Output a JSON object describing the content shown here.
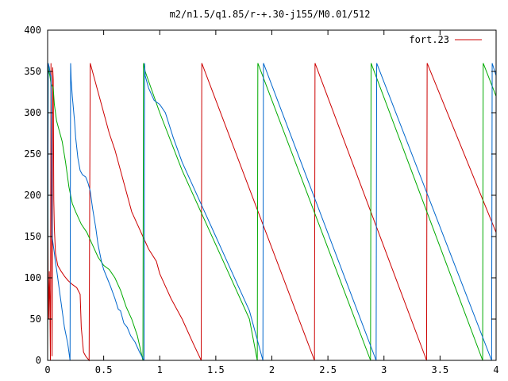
{
  "chart_data": {
    "type": "line",
    "title": "m2/n1.5/q1.85/r-+.30-j155/M0.01/512",
    "xlabel": "",
    "ylabel": "",
    "xlim": [
      0,
      4
    ],
    "ylim": [
      0,
      400
    ],
    "xticks": [
      0,
      0.5,
      1,
      1.5,
      2,
      2.5,
      3,
      3.5,
      4
    ],
    "yticks": [
      0,
      50,
      100,
      150,
      200,
      250,
      300,
      350,
      400
    ],
    "xtick_labels": [
      "0",
      "0.5",
      "1",
      "1.5",
      "2",
      "2.5",
      "3",
      "3.5",
      "4"
    ],
    "ytick_labels": [
      "0",
      "50",
      "100",
      "150",
      "200",
      "250",
      "300",
      "350",
      "400"
    ],
    "grid": false,
    "legend_position": "top-right",
    "legend_entry": "fort.23",
    "series": [
      {
        "name": "fort.23",
        "color": "#cc0000",
        "points": [
          [
            0.0,
            360
          ],
          [
            0.005,
            100
          ],
          [
            0.01,
            50
          ],
          [
            0.015,
            108
          ],
          [
            0.02,
            70
          ],
          [
            0.025,
            0
          ],
          [
            0.03,
            360
          ],
          [
            0.035,
            200
          ],
          [
            0.04,
            5
          ],
          [
            0.045,
            355
          ],
          [
            0.05,
            340
          ],
          [
            0.055,
            195
          ],
          [
            0.06,
            160
          ],
          [
            0.07,
            130
          ],
          [
            0.09,
            115
          ],
          [
            0.12,
            108
          ],
          [
            0.15,
            102
          ],
          [
            0.18,
            97
          ],
          [
            0.22,
            92
          ],
          [
            0.26,
            88
          ],
          [
            0.29,
            80
          ],
          [
            0.3,
            40
          ],
          [
            0.32,
            10
          ],
          [
            0.34,
            5
          ],
          [
            0.37,
            0
          ],
          [
            0.38,
            360
          ],
          [
            0.42,
            340
          ],
          [
            0.46,
            320
          ],
          [
            0.5,
            300
          ],
          [
            0.55,
            275
          ],
          [
            0.6,
            255
          ],
          [
            0.65,
            230
          ],
          [
            0.7,
            205
          ],
          [
            0.75,
            180
          ],
          [
            0.8,
            165
          ],
          [
            0.85,
            150
          ],
          [
            0.9,
            135
          ],
          [
            0.97,
            120
          ],
          [
            1.0,
            105
          ],
          [
            1.05,
            90
          ],
          [
            1.1,
            75
          ],
          [
            1.2,
            50
          ],
          [
            1.3,
            20
          ],
          [
            1.37,
            0
          ],
          [
            1.375,
            360
          ],
          [
            2.38,
            0
          ],
          [
            2.385,
            360
          ],
          [
            3.38,
            0
          ],
          [
            3.385,
            360
          ],
          [
            4.0,
            155
          ]
        ]
      },
      {
        "name": "",
        "color": "#00aa00",
        "points": [
          [
            0.0,
            0
          ],
          [
            0.005,
            360
          ],
          [
            0.01,
            350
          ],
          [
            0.02,
            345
          ],
          [
            0.03,
            335
          ],
          [
            0.05,
            330
          ],
          [
            0.06,
            310
          ],
          [
            0.08,
            290
          ],
          [
            0.1,
            280
          ],
          [
            0.13,
            265
          ],
          [
            0.16,
            240
          ],
          [
            0.19,
            210
          ],
          [
            0.22,
            190
          ],
          [
            0.25,
            180
          ],
          [
            0.3,
            165
          ],
          [
            0.35,
            155
          ],
          [
            0.4,
            140
          ],
          [
            0.45,
            125
          ],
          [
            0.5,
            115
          ],
          [
            0.55,
            110
          ],
          [
            0.6,
            100
          ],
          [
            0.65,
            85
          ],
          [
            0.7,
            65
          ],
          [
            0.75,
            50
          ],
          [
            0.8,
            30
          ],
          [
            0.85,
            0
          ],
          [
            0.855,
            360
          ],
          [
            0.87,
            350
          ],
          [
            1.0,
            300
          ],
          [
            1.2,
            230
          ],
          [
            1.4,
            170
          ],
          [
            1.6,
            110
          ],
          [
            1.8,
            50
          ],
          [
            1.87,
            0
          ],
          [
            1.875,
            360
          ],
          [
            2.88,
            0
          ],
          [
            2.885,
            360
          ],
          [
            3.88,
            0
          ],
          [
            3.885,
            360
          ],
          [
            4.0,
            320
          ]
        ]
      },
      {
        "name": "",
        "color": "#0066cc",
        "points": [
          [
            0.0,
            20
          ],
          [
            0.005,
            360
          ],
          [
            0.015,
            355
          ],
          [
            0.025,
            345
          ],
          [
            0.03,
            345
          ],
          [
            0.04,
            150
          ],
          [
            0.05,
            140
          ],
          [
            0.06,
            130
          ],
          [
            0.07,
            118
          ],
          [
            0.08,
            110
          ],
          [
            0.09,
            100
          ],
          [
            0.12,
            70
          ],
          [
            0.15,
            40
          ],
          [
            0.18,
            20
          ],
          [
            0.2,
            0
          ],
          [
            0.205,
            360
          ],
          [
            0.21,
            340
          ],
          [
            0.22,
            320
          ],
          [
            0.23,
            305
          ],
          [
            0.24,
            290
          ],
          [
            0.25,
            270
          ],
          [
            0.27,
            245
          ],
          [
            0.29,
            230
          ],
          [
            0.31,
            225
          ],
          [
            0.34,
            222
          ],
          [
            0.36,
            215
          ],
          [
            0.38,
            205
          ],
          [
            0.4,
            185
          ],
          [
            0.43,
            160
          ],
          [
            0.45,
            140
          ],
          [
            0.48,
            120
          ],
          [
            0.5,
            110
          ],
          [
            0.53,
            100
          ],
          [
            0.56,
            90
          ],
          [
            0.6,
            75
          ],
          [
            0.63,
            62
          ],
          [
            0.65,
            60
          ],
          [
            0.66,
            55
          ],
          [
            0.68,
            45
          ],
          [
            0.71,
            40
          ],
          [
            0.74,
            30
          ],
          [
            0.78,
            22
          ],
          [
            0.82,
            10
          ],
          [
            0.86,
            0
          ],
          [
            0.865,
            360
          ],
          [
            0.87,
            345
          ],
          [
            0.9,
            330
          ],
          [
            0.95,
            315
          ],
          [
            1.0,
            310
          ],
          [
            1.05,
            300
          ],
          [
            1.12,
            270
          ],
          [
            1.2,
            240
          ],
          [
            1.3,
            210
          ],
          [
            1.4,
            180
          ],
          [
            1.5,
            150
          ],
          [
            1.6,
            120
          ],
          [
            1.7,
            90
          ],
          [
            1.8,
            60
          ],
          [
            1.9,
            10
          ],
          [
            1.92,
            0
          ],
          [
            1.925,
            360
          ],
          [
            2.93,
            0
          ],
          [
            2.935,
            360
          ],
          [
            3.96,
            0
          ],
          [
            3.965,
            360
          ],
          [
            4.0,
            345
          ]
        ]
      }
    ]
  }
}
